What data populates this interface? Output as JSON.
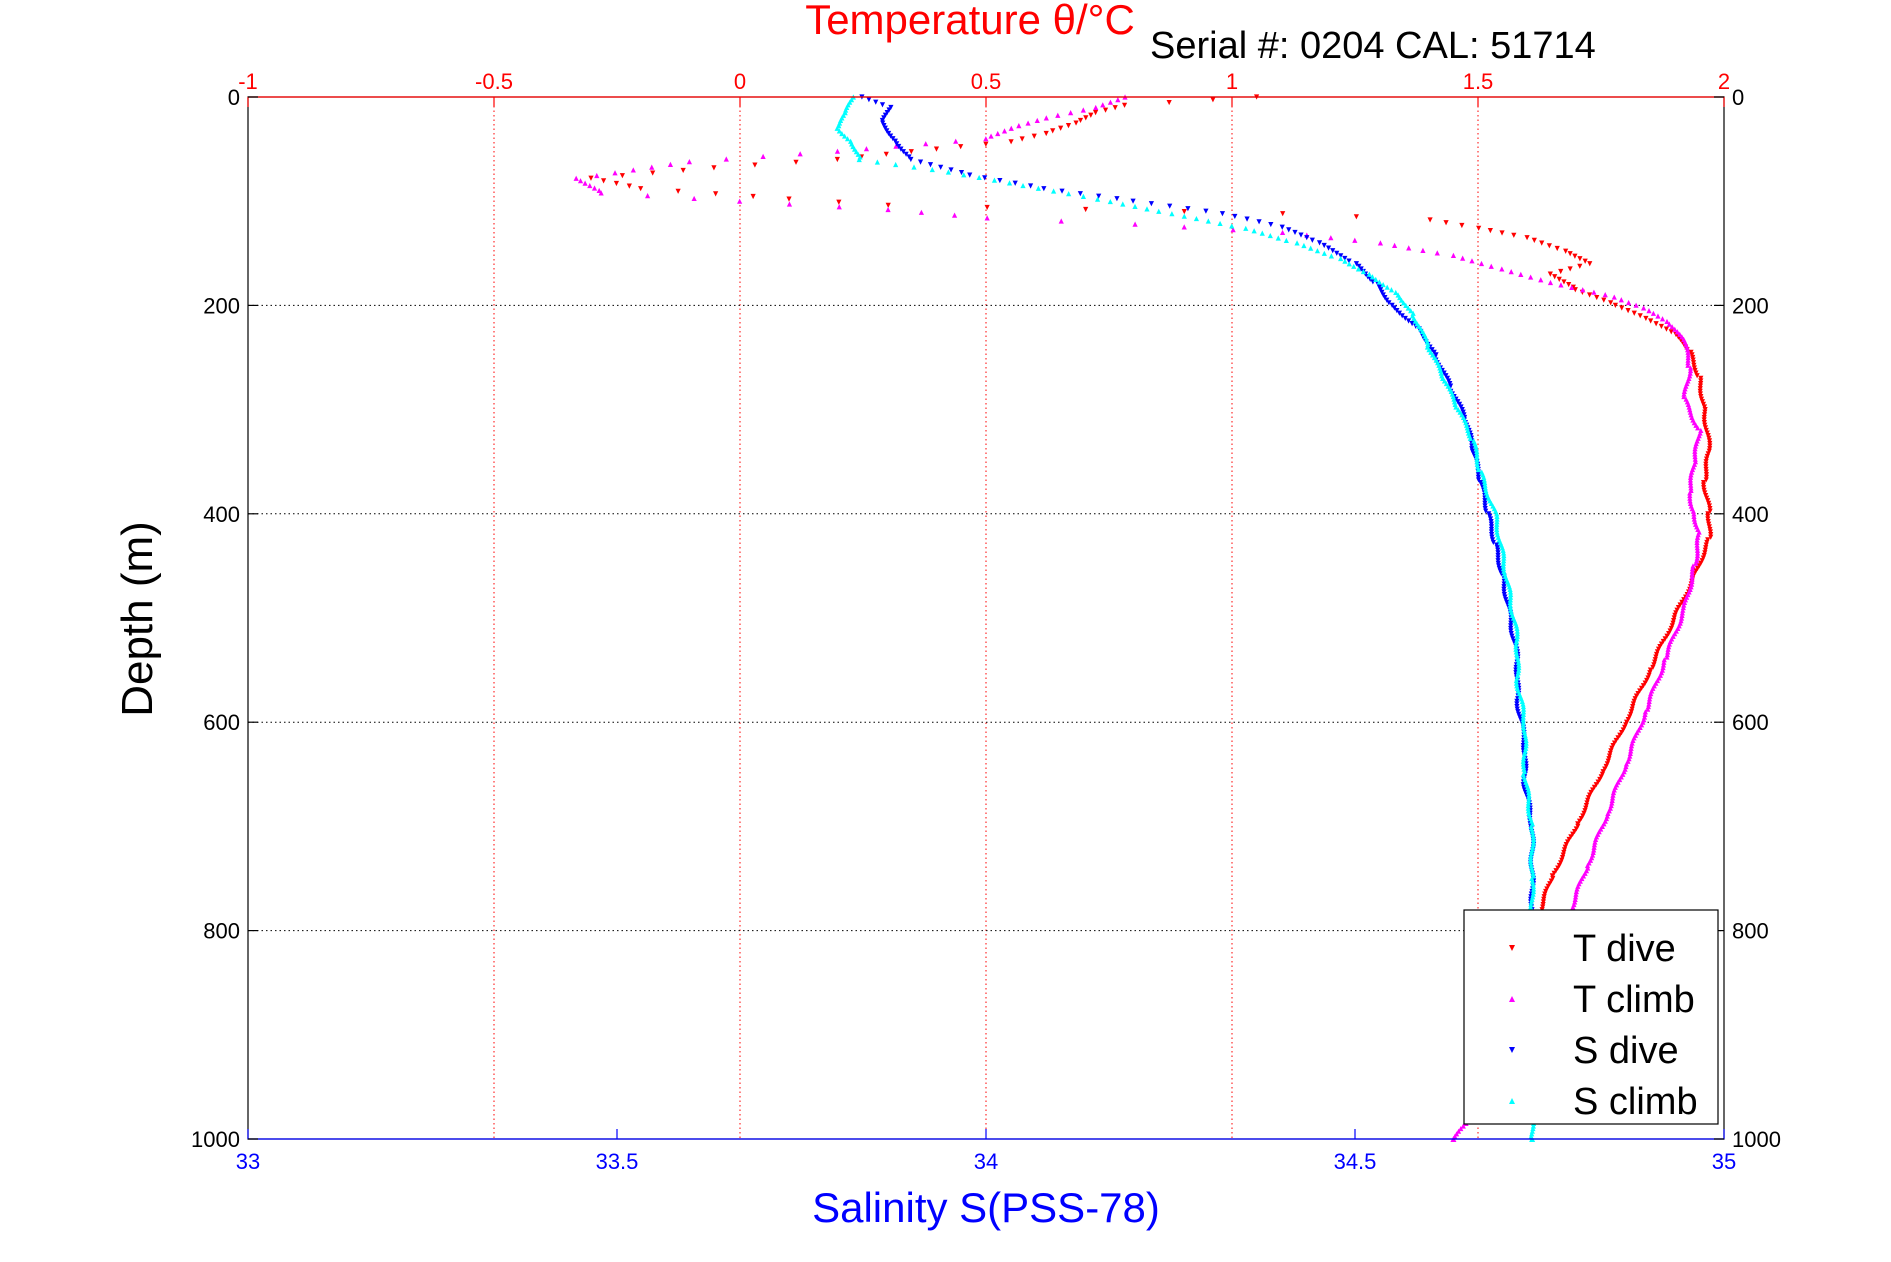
{
  "chart_data": {
    "type": "scatter",
    "title": "Serial #: 0204   CAL: 51714",
    "top_axis_label": "Temperature θ/°C",
    "bottom_axis_label": "Salinity S(PSS-78)",
    "ylabel": "Depth (m)",
    "temperature_range": [
      -1,
      2
    ],
    "salinity_range": [
      33,
      35
    ],
    "depth_range": [
      0,
      1000
    ],
    "y_reversed": true,
    "temperature_ticks": [
      "-1",
      "-0.5",
      "0",
      "0.5",
      "1",
      "1.5",
      "2"
    ],
    "salinity_ticks": [
      "33",
      "33.5",
      "34",
      "34.5",
      "35"
    ],
    "depth_ticks": [
      "0",
      "200",
      "400",
      "600",
      "800",
      "1000"
    ],
    "grid": true,
    "legend_position": "bottom-right",
    "colors": {
      "temperature_axis": "#ff0000",
      "salinity_axis": "#0000ff",
      "depth_axis": "#000000"
    },
    "series": [
      {
        "name": "T dive",
        "axis": "temperature",
        "color": "#ff0000",
        "marker": "triangle-down",
        "points": [
          [
            1.05,
            0
          ],
          [
            0.78,
            8
          ],
          [
            0.72,
            15
          ],
          [
            0.68,
            25
          ],
          [
            0.62,
            35
          ],
          [
            0.55,
            43
          ],
          [
            0.4,
            50
          ],
          [
            0.2,
            60
          ],
          [
            -0.05,
            68
          ],
          [
            -0.3,
            78
          ],
          [
            -0.2,
            88
          ],
          [
            0.1,
            98
          ],
          [
            0.3,
            104
          ],
          [
            0.7,
            108
          ],
          [
            1.1,
            112
          ],
          [
            1.4,
            118
          ],
          [
            1.5,
            126
          ],
          [
            1.6,
            135
          ],
          [
            1.68,
            148
          ],
          [
            1.73,
            160
          ],
          [
            1.65,
            170
          ],
          [
            1.7,
            185
          ],
          [
            1.78,
            200
          ],
          [
            1.85,
            215
          ],
          [
            1.9,
            228
          ],
          [
            1.93,
            245
          ],
          [
            1.95,
            270
          ],
          [
            1.96,
            300
          ],
          [
            1.97,
            340
          ],
          [
            1.96,
            370
          ],
          [
            1.97,
            400
          ],
          [
            1.97,
            425
          ],
          [
            1.94,
            460
          ],
          [
            1.9,
            500
          ],
          [
            1.85,
            550
          ],
          [
            1.8,
            600
          ],
          [
            1.75,
            650
          ],
          [
            1.7,
            700
          ],
          [
            1.65,
            750
          ],
          [
            1.62,
            790
          ]
        ]
      },
      {
        "name": "T climb",
        "axis": "temperature",
        "color": "#ff00ff",
        "marker": "triangle-up",
        "points": [
          [
            0.78,
            0
          ],
          [
            0.72,
            10
          ],
          [
            0.62,
            20
          ],
          [
            0.55,
            30
          ],
          [
            0.5,
            40
          ],
          [
            0.2,
            52
          ],
          [
            -0.1,
            62
          ],
          [
            -0.33,
            78
          ],
          [
            -0.28,
            92
          ],
          [
            0.0,
            100
          ],
          [
            0.3,
            108
          ],
          [
            0.5,
            116
          ],
          [
            0.8,
            122
          ],
          [
            1.1,
            130
          ],
          [
            1.3,
            140
          ],
          [
            1.45,
            152
          ],
          [
            1.55,
            165
          ],
          [
            1.65,
            178
          ],
          [
            1.78,
            192
          ],
          [
            1.85,
            205
          ],
          [
            1.89,
            218
          ],
          [
            1.92,
            235
          ],
          [
            1.93,
            260
          ],
          [
            1.92,
            290
          ],
          [
            1.95,
            320
          ],
          [
            1.94,
            350
          ],
          [
            1.93,
            380
          ],
          [
            1.94,
            400
          ],
          [
            1.95,
            420
          ],
          [
            1.94,
            450
          ],
          [
            1.92,
            490
          ],
          [
            1.88,
            540
          ],
          [
            1.84,
            590
          ],
          [
            1.8,
            640
          ],
          [
            1.76,
            690
          ],
          [
            1.72,
            740
          ],
          [
            1.68,
            790
          ],
          [
            1.63,
            850
          ],
          [
            1.58,
            900
          ],
          [
            1.54,
            950
          ],
          [
            1.45,
            1000
          ]
        ]
      },
      {
        "name": "S dive",
        "axis": "salinity",
        "color": "#0000ff",
        "marker": "triangle-down",
        "points": [
          [
            33.83,
            0
          ],
          [
            33.87,
            10
          ],
          [
            33.86,
            25
          ],
          [
            33.88,
            45
          ],
          [
            33.9,
            60
          ],
          [
            33.98,
            75
          ],
          [
            34.08,
            88
          ],
          [
            34.2,
            100
          ],
          [
            34.32,
            112
          ],
          [
            34.4,
            125
          ],
          [
            34.45,
            140
          ],
          [
            34.5,
            160
          ],
          [
            34.53,
            180
          ],
          [
            34.55,
            200
          ],
          [
            34.59,
            225
          ],
          [
            34.61,
            250
          ],
          [
            34.63,
            280
          ],
          [
            34.65,
            310
          ],
          [
            34.66,
            340
          ],
          [
            34.67,
            370
          ],
          [
            34.68,
            400
          ],
          [
            34.69,
            430
          ],
          [
            34.7,
            460
          ],
          [
            34.71,
            500
          ],
          [
            34.72,
            540
          ],
          [
            34.72,
            580
          ],
          [
            34.73,
            620
          ],
          [
            34.73,
            660
          ],
          [
            34.74,
            700
          ],
          [
            34.74,
            740
          ],
          [
            34.74,
            780
          ],
          [
            34.74,
            800
          ]
        ]
      },
      {
        "name": "S climb",
        "axis": "salinity",
        "color": "#00ffff",
        "marker": "triangle-up",
        "points": [
          [
            33.82,
            0
          ],
          [
            33.81,
            15
          ],
          [
            33.8,
            30
          ],
          [
            33.82,
            45
          ],
          [
            33.83,
            60
          ],
          [
            33.95,
            72
          ],
          [
            34.05,
            85
          ],
          [
            34.15,
            98
          ],
          [
            34.25,
            112
          ],
          [
            34.35,
            126
          ],
          [
            34.42,
            140
          ],
          [
            34.48,
            155
          ],
          [
            34.52,
            170
          ],
          [
            34.56,
            190
          ],
          [
            34.58,
            210
          ],
          [
            34.6,
            240
          ],
          [
            34.62,
            270
          ],
          [
            34.64,
            300
          ],
          [
            34.66,
            330
          ],
          [
            34.67,
            360
          ],
          [
            34.69,
            400
          ],
          [
            34.7,
            440
          ],
          [
            34.71,
            480
          ],
          [
            34.72,
            520
          ],
          [
            34.72,
            560
          ],
          [
            34.73,
            600
          ],
          [
            34.73,
            650
          ],
          [
            34.74,
            700
          ],
          [
            34.74,
            750
          ],
          [
            34.74,
            800
          ],
          [
            34.74,
            850
          ],
          [
            34.74,
            900
          ],
          [
            34.74,
            950
          ],
          [
            34.74,
            1000
          ]
        ]
      }
    ]
  }
}
